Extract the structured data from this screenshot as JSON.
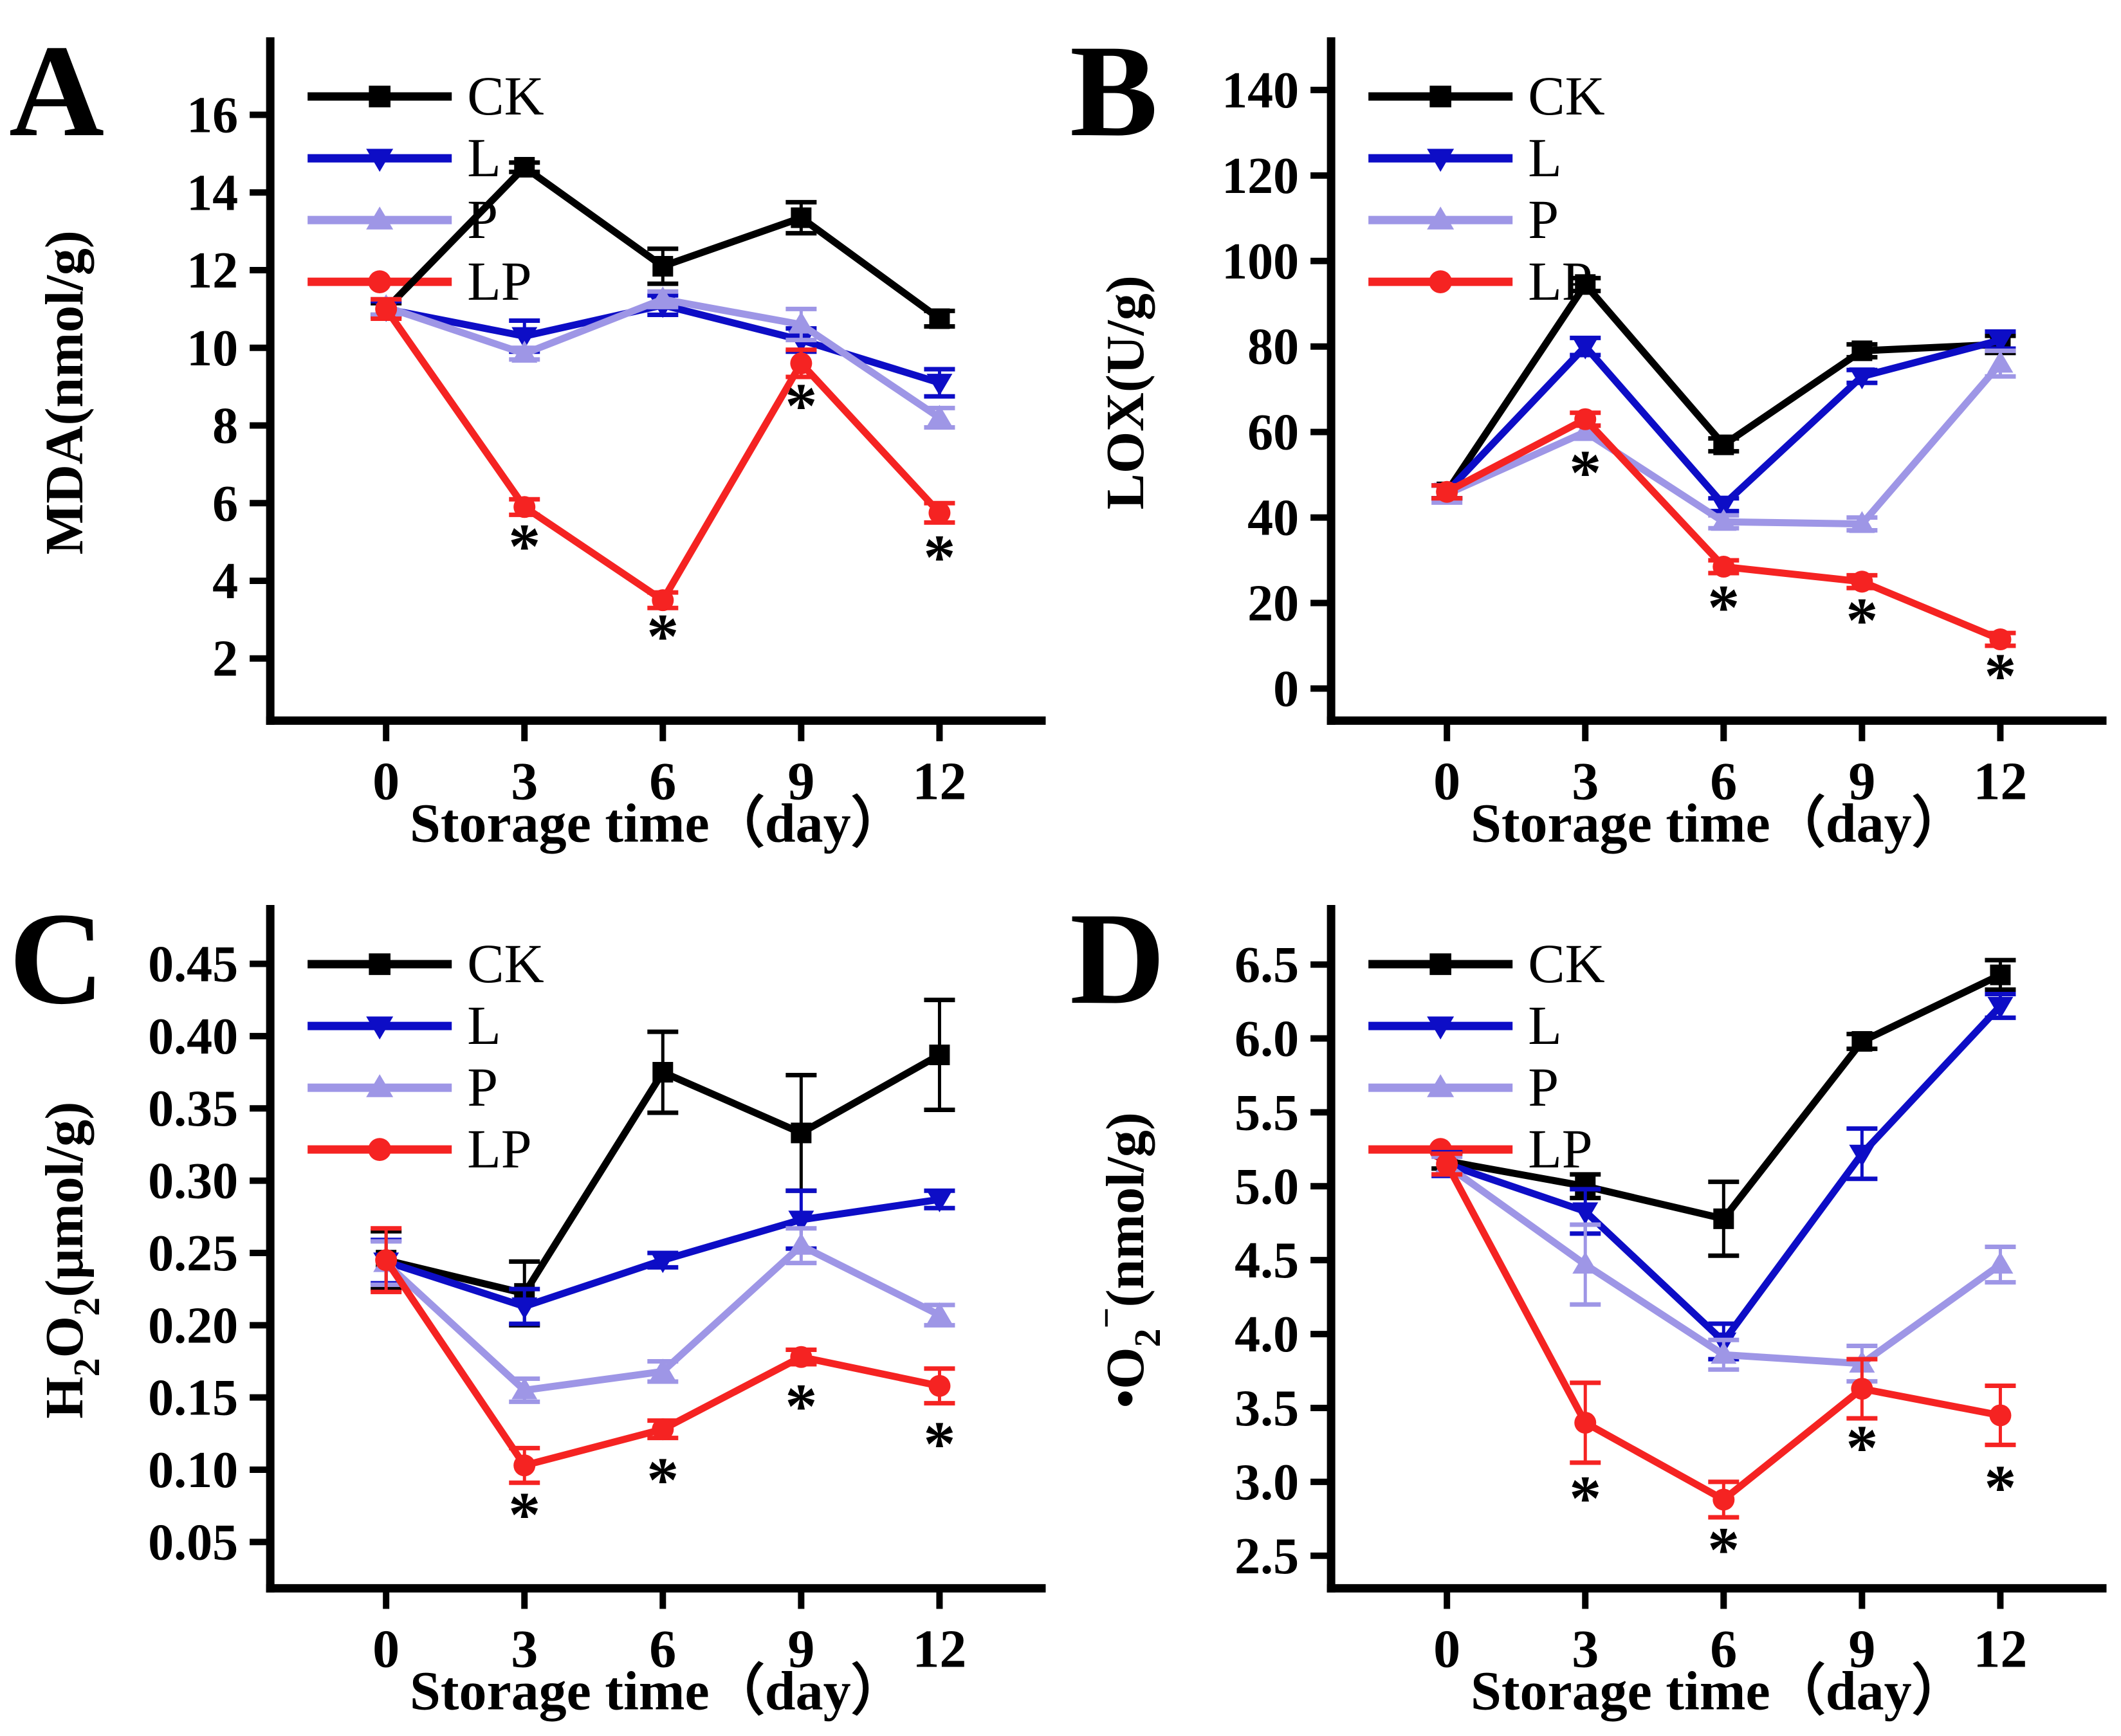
{
  "figure": {
    "xlabel": "Storage time（day）",
    "x_categories": [
      0,
      3,
      6,
      9,
      12
    ],
    "legend": [
      {
        "name": "CK",
        "color": "#000000",
        "marker": "square"
      },
      {
        "name": "L",
        "color": "#0D0DC6",
        "marker": "triangle-down"
      },
      {
        "name": "P",
        "color": "#9E96E6",
        "marker": "triangle-up"
      },
      {
        "name": "LP",
        "color": "#F52322",
        "marker": "circle"
      }
    ],
    "sig_marker": "*",
    "sig_color": "#F52322",
    "axis_color": "#000000"
  },
  "chart_data": [
    {
      "type": "line",
      "panel_label": "A",
      "ylabel_text": "MDA(nmol/g)",
      "ylabel_segments": [
        {
          "t": "MDA(nmol/g)"
        }
      ],
      "xlabel": "Storage time（day）",
      "x": [
        0,
        3,
        6,
        9,
        12
      ],
      "ylim": [
        0.4,
        17.3
      ],
      "yticks": [
        2,
        4,
        6,
        8,
        10,
        12,
        14,
        16
      ],
      "ytick_decimals": 0,
      "legend_position": "top-left",
      "grid": false,
      "series": [
        {
          "name": "CK",
          "values": [
            11.0,
            14.65,
            12.1,
            13.35,
            10.75
          ],
          "errors": [
            0.15,
            0.12,
            0.45,
            0.4,
            0.2
          ]
        },
        {
          "name": "L",
          "values": [
            11.0,
            10.3,
            11.1,
            10.2,
            9.1
          ],
          "errors": [
            0.2,
            0.4,
            0.25,
            0.3,
            0.35
          ]
        },
        {
          "name": "P",
          "values": [
            11.05,
            9.85,
            11.25,
            10.6,
            8.2
          ],
          "errors": [
            0.2,
            0.15,
            0.2,
            0.4,
            0.25
          ]
        },
        {
          "name": "LP",
          "values": [
            11.0,
            5.9,
            3.5,
            9.6,
            5.75
          ],
          "errors": [
            0.25,
            0.2,
            0.2,
            0.35,
            0.25
          ]
        }
      ],
      "asterisks": [
        {
          "day": 3,
          "y": 5.0
        },
        {
          "day": 6,
          "y": 2.68
        },
        {
          "day": 9,
          "y": 8.62
        },
        {
          "day": 12,
          "y": 4.72
        }
      ]
    },
    {
      "type": "line",
      "panel_label": "B",
      "ylabel_text": "LOX(U/g)",
      "ylabel_segments": [
        {
          "t": "LOX(U/g)"
        }
      ],
      "xlabel": "Storage time（day）",
      "x": [
        0,
        3,
        6,
        9,
        12
      ],
      "ylim": [
        -7.5,
        146
      ],
      "yticks": [
        0,
        20,
        40,
        60,
        80,
        100,
        120,
        140
      ],
      "ytick_decimals": 0,
      "legend_position": "top-left",
      "grid": false,
      "series": [
        {
          "name": "CK",
          "values": [
            46,
            94.5,
            57,
            79,
            80.5
          ],
          "errors": [
            1.5,
            1.5,
            1.5,
            1.5,
            2
          ]
        },
        {
          "name": "L",
          "values": [
            46,
            80,
            43,
            73,
            81.5
          ],
          "errors": [
            1.5,
            2,
            1.5,
            1.5,
            2
          ]
        },
        {
          "name": "P",
          "values": [
            45.5,
            60,
            39,
            38.5,
            76
          ],
          "errors": [
            2,
            1.5,
            1.5,
            1.5,
            3
          ]
        },
        {
          "name": "LP",
          "values": [
            46,
            63,
            28.5,
            25,
            11.5
          ],
          "errors": [
            1.5,
            1.5,
            1.5,
            1.5,
            1.5
          ]
        }
      ],
      "asterisks": [
        {
          "day": 3,
          "y": 51.5
        },
        {
          "day": 6,
          "y": 20.0
        },
        {
          "day": 9,
          "y": 17.0
        },
        {
          "day": 12,
          "y": 4.0
        }
      ]
    },
    {
      "type": "line",
      "panel_label": "C",
      "ylabel_text": "H2O2(μmol/g)",
      "ylabel_segments": [
        {
          "t": "H"
        },
        {
          "t": "2",
          "sub": true
        },
        {
          "t": "O"
        },
        {
          "t": "2",
          "sub": true
        },
        {
          "t": "(μmol/g)"
        }
      ],
      "xlabel": "Storage time（day）",
      "x": [
        0,
        3,
        6,
        9,
        12
      ],
      "ylim": [
        0.018,
        0.472
      ],
      "yticks": [
        0.05,
        0.1,
        0.15,
        0.2,
        0.25,
        0.3,
        0.35,
        0.4,
        0.45
      ],
      "ytick_decimals": 2,
      "legend_position": "top-left",
      "grid": false,
      "series": [
        {
          "name": "CK",
          "values": [
            0.245,
            0.222,
            0.375,
            0.333,
            0.387
          ],
          "errors": [
            0.02,
            0.022,
            0.028,
            0.04,
            0.038
          ]
        },
        {
          "name": "L",
          "values": [
            0.244,
            0.213,
            0.245,
            0.273,
            0.287
          ],
          "errors": [
            0.015,
            0.012,
            0.005,
            0.02,
            0.006
          ]
        },
        {
          "name": "P",
          "values": [
            0.243,
            0.155,
            0.168,
            0.255,
            0.207
          ],
          "errors": [
            0.015,
            0.008,
            0.007,
            0.012,
            0.007
          ]
        },
        {
          "name": "LP",
          "values": [
            0.245,
            0.103,
            0.128,
            0.178,
            0.158
          ],
          "errors": [
            0.022,
            0.012,
            0.006,
            0.005,
            0.012
          ]
        }
      ],
      "asterisks": [
        {
          "day": 3,
          "y": 0.072
        },
        {
          "day": 6,
          "y": 0.096
        },
        {
          "day": 9,
          "y": 0.147
        },
        {
          "day": 12,
          "y": 0.121
        }
      ]
    },
    {
      "type": "line",
      "panel_label": "D",
      "ylabel_text": "•O2−(nmol/g)",
      "ylabel_segments": [
        {
          "t": "•O"
        },
        {
          "t": "2",
          "sub": true
        },
        {
          "t": "−",
          "sup": true
        },
        {
          "t": "(nmol/g)"
        }
      ],
      "xlabel": "Storage time（day）",
      "x": [
        0,
        3,
        6,
        9,
        12
      ],
      "ylim": [
        2.28,
        6.72
      ],
      "yticks": [
        2.5,
        3.0,
        3.5,
        4.0,
        4.5,
        5.0,
        5.5,
        6.0,
        6.5
      ],
      "ytick_decimals": 1,
      "legend_position": "top-left",
      "grid": false,
      "series": [
        {
          "name": "CK",
          "values": [
            5.17,
            5.0,
            4.78,
            5.98,
            6.43
          ],
          "errors": [
            0.05,
            0.08,
            0.25,
            0.05,
            0.1
          ]
        },
        {
          "name": "L",
          "values": [
            5.15,
            4.83,
            3.95,
            5.22,
            6.22
          ],
          "errors": [
            0.08,
            0.15,
            0.12,
            0.17,
            0.08
          ]
        },
        {
          "name": "P",
          "values": [
            5.14,
            4.47,
            3.86,
            3.8,
            4.47
          ],
          "errors": [
            0.06,
            0.27,
            0.1,
            0.12,
            0.12
          ]
        },
        {
          "name": "LP",
          "values": [
            5.15,
            3.4,
            2.88,
            3.63,
            3.45
          ],
          "errors": [
            0.07,
            0.27,
            0.12,
            0.2,
            0.2
          ]
        }
      ],
      "asterisks": [
        {
          "day": 3,
          "y": 2.92
        },
        {
          "day": 6,
          "y": 2.57
        },
        {
          "day": 9,
          "y": 3.26
        },
        {
          "day": 12,
          "y": 2.99
        }
      ]
    }
  ]
}
